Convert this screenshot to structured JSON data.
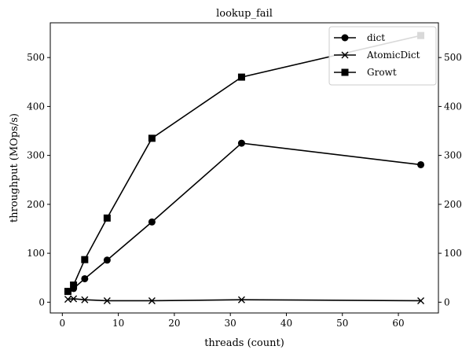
{
  "chart_data": {
    "type": "line",
    "title": "lookup_fail",
    "xlabel": "threads (count)",
    "ylabel": "throughput (MOps/s)",
    "xlim": [
      -2.15,
      67.15
    ],
    "ylim": [
      -22,
      571
    ],
    "xticks": [
      0,
      10,
      20,
      30,
      40,
      50,
      60
    ],
    "yticks": [
      0,
      100,
      200,
      300,
      400,
      500
    ],
    "grid": false,
    "right_axis_mirror": true,
    "legend_position": "top-right",
    "x": [
      1,
      2,
      4,
      8,
      16,
      32,
      64
    ],
    "series": [
      {
        "name": "dict",
        "marker": "circle",
        "color": "#000000",
        "values": [
          22,
          28,
          48,
          86,
          164,
          325,
          281
        ]
      },
      {
        "name": "AtomicDict",
        "marker": "x",
        "color": "#000000",
        "values": [
          6,
          7,
          5,
          3,
          3,
          5,
          3
        ]
      },
      {
        "name": "Growt",
        "marker": "square",
        "color": "#000000",
        "values": [
          22,
          35,
          87,
          172,
          335,
          460,
          545
        ]
      }
    ]
  }
}
